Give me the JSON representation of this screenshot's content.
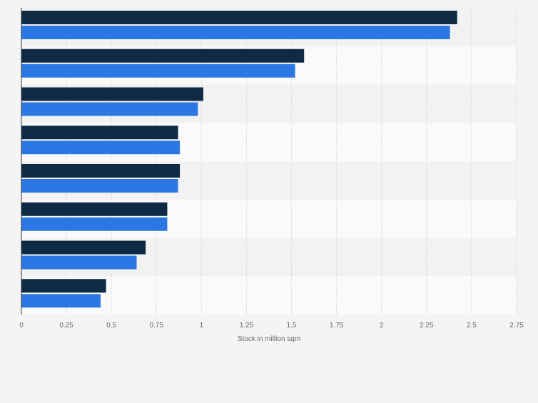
{
  "chart_data": {
    "type": "bar",
    "orientation": "horizontal",
    "categories": [
      "",
      "",
      "",
      "",
      "",
      "",
      "",
      ""
    ],
    "series": [
      {
        "color": "#0f2a44",
        "values": [
          2.42,
          1.57,
          1.01,
          0.87,
          0.88,
          0.81,
          0.69,
          0.47
        ]
      },
      {
        "color": "#2b78e4",
        "values": [
          2.38,
          1.52,
          0.98,
          0.88,
          0.87,
          0.81,
          0.64,
          0.44
        ]
      }
    ],
    "xlabel": "Stock in million sqm",
    "ylabel": "",
    "xlim": [
      0,
      2.75
    ],
    "xticks": [
      "0",
      "0.25",
      "0.5",
      "0.75",
      "1",
      "1.25",
      "1.5",
      "1.75",
      "2",
      "2.25",
      "2.5",
      "2.75"
    ],
    "grid": true,
    "legend": "none"
  }
}
